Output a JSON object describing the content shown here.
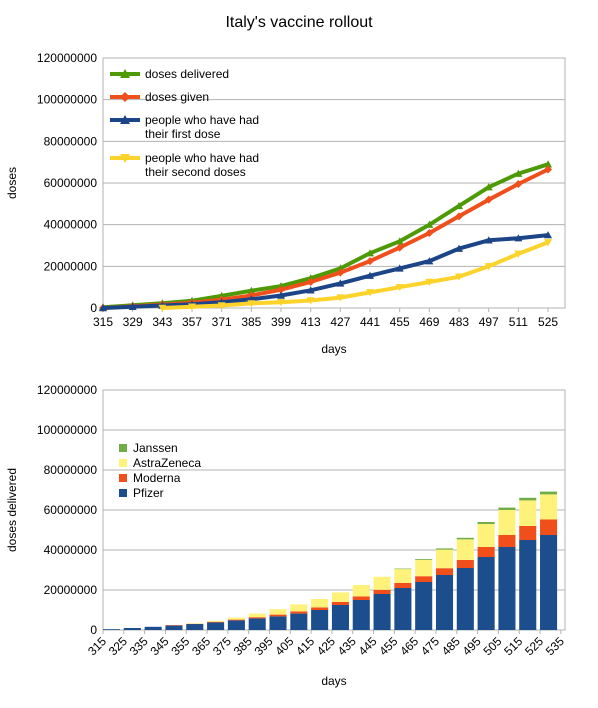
{
  "title": "Italy's vaccine rollout",
  "chart_data": [
    {
      "type": "line",
      "xlabel": "days",
      "ylabel": "doses",
      "ylim": [
        0,
        120000000
      ],
      "yticks": [
        "0",
        "20000000",
        "40000000",
        "60000000",
        "80000000",
        "100000000",
        "120000000"
      ],
      "xticks": [
        "315",
        "329",
        "343",
        "357",
        "371",
        "385",
        "399",
        "413",
        "427",
        "441",
        "455",
        "469",
        "483",
        "497",
        "511",
        "525"
      ],
      "xlim": [
        315,
        533
      ],
      "grid": true,
      "legend_position": "top-left",
      "series": [
        {
          "name": "doses delivered",
          "color": "#4e9a06",
          "marker": "triangle",
          "x": [
            315,
            329,
            343,
            357,
            371,
            385,
            399,
            413,
            427,
            441,
            455,
            469,
            483,
            497,
            511,
            525
          ],
          "y": [
            400000,
            1300000,
            2300000,
            3500000,
            5800000,
            8300000,
            10500000,
            14300000,
            19000000,
            26300000,
            32000000,
            40000000,
            49000000,
            58000000,
            64500000,
            69000000
          ]
        },
        {
          "name": "doses given",
          "color": "#f04f1c",
          "marker": "diamond",
          "x": [
            315,
            329,
            343,
            357,
            371,
            385,
            399,
            413,
            427,
            441,
            455,
            469,
            483,
            497,
            511,
            525
          ],
          "y": [
            0,
            800000,
            1600000,
            2500000,
            4000000,
            6000000,
            8800000,
            12500000,
            17000000,
            22500000,
            29000000,
            36000000,
            44000000,
            52000000,
            59500000,
            66500000
          ]
        },
        {
          "name": "people who have had their first dose",
          "color": "#1c4587",
          "marker": "triangle",
          "x": [
            315,
            329,
            343,
            357,
            371,
            385,
            399,
            413,
            427,
            441,
            455,
            469,
            483,
            497,
            511,
            525
          ],
          "y": [
            0,
            600000,
            1200000,
            1800000,
            2800000,
            4200000,
            6000000,
            8500000,
            11800000,
            15500000,
            19000000,
            22500000,
            28500000,
            32500000,
            33500000,
            35000000
          ]
        },
        {
          "name": "people who have had their second doses",
          "color": "#fcd32a",
          "marker": "triangle-down",
          "x": [
            343,
            357,
            371,
            385,
            399,
            413,
            427,
            441,
            455,
            469,
            483,
            497,
            511,
            525
          ],
          "y": [
            0,
            600000,
            1200000,
            2200000,
            2800000,
            3600000,
            5000000,
            7500000,
            10000000,
            12500000,
            15000000,
            20000000,
            26000000,
            31500000
          ]
        }
      ]
    },
    {
      "type": "bar",
      "stacked": true,
      "xlabel": "days",
      "ylabel": "doses delivered",
      "ylim": [
        0,
        120000000
      ],
      "yticks": [
        "0",
        "20000000",
        "40000000",
        "60000000",
        "80000000",
        "100000000",
        "120000000"
      ],
      "xticks": [
        "315",
        "325",
        "335",
        "345",
        "355",
        "365",
        "375",
        "385",
        "395",
        "405",
        "415",
        "425",
        "435",
        "445",
        "455",
        "465",
        "475",
        "485",
        "495",
        "505",
        "515",
        "525",
        "535"
      ],
      "xlim": [
        315,
        537
      ],
      "grid": true,
      "legend_position": "left",
      "x": [
        315,
        325,
        335,
        345,
        355,
        365,
        375,
        385,
        395,
        405,
        415,
        425,
        435,
        445,
        455,
        465,
        475,
        485,
        495,
        505,
        515,
        525
      ],
      "series": [
        {
          "name": "Pfizer",
          "color": "#1c4d8c",
          "values": [
            400000,
            1000000,
            1600000,
            2300000,
            3000000,
            3800000,
            4800000,
            5800000,
            6800000,
            8200000,
            10000000,
            12500000,
            15000000,
            18000000,
            21000000,
            24000000,
            27500000,
            31000000,
            36500000,
            41500000,
            45000000,
            47500000
          ]
        },
        {
          "name": "Moderna",
          "color": "#f04f1c",
          "values": [
            0,
            0,
            0,
            100000,
            200000,
            300000,
            400000,
            600000,
            900000,
            1100000,
            1300000,
            1500000,
            1800000,
            2100000,
            2500000,
            2900000,
            3400000,
            4000000,
            5000000,
            6000000,
            7000000,
            7800000
          ]
        },
        {
          "name": "AstraZeneca",
          "color": "#fff27a",
          "values": [
            0,
            0,
            0,
            0,
            100000,
            500000,
            1000000,
            1800000,
            2700000,
            3500000,
            4200000,
            4800000,
            5700000,
            6500000,
            7000000,
            8200000,
            9300000,
            10300000,
            11500000,
            12500000,
            12800000,
            12500000
          ]
        },
        {
          "name": "Janssen",
          "color": "#70ad47",
          "values": [
            0,
            0,
            0,
            0,
            0,
            0,
            0,
            0,
            0,
            0,
            0,
            0,
            0,
            0,
            200000,
            400000,
            600000,
            800000,
            1000000,
            1200000,
            1300000,
            1400000
          ]
        }
      ]
    }
  ]
}
